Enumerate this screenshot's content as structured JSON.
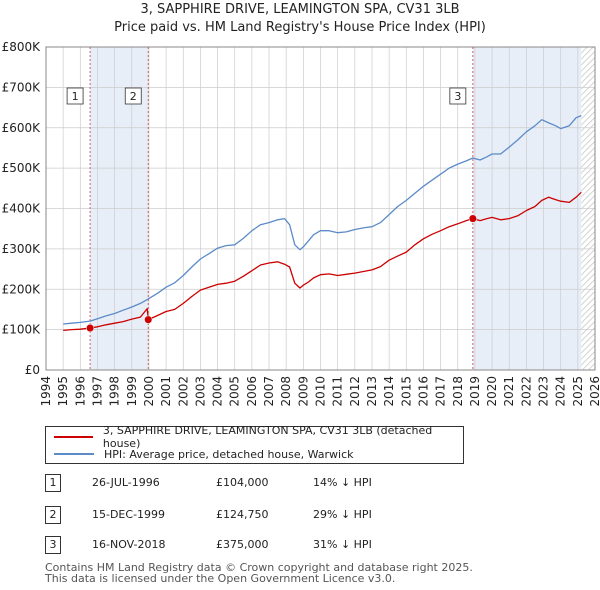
{
  "title": "3, SAPPHIRE DRIVE, LEAMINGTON SPA, CV31 3LB",
  "subtitle": "Price paid vs. HM Land Registry's House Price Index (HPI)",
  "colors": {
    "property": "#cc0000",
    "hpi": "#5b8bc9",
    "shade": "#e8eef8",
    "grid": "#cccccc",
    "marker_line": "#d06060"
  },
  "legend": {
    "property_label": "3, SAPPHIRE DRIVE, LEAMINGTON SPA, CV31 3LB (detached house)",
    "hpi_label": "HPI: Average price, detached house, Warwick"
  },
  "transactions": [
    {
      "num": "1",
      "date": "26-JUL-1996",
      "price": "£104,000",
      "hpi_diff": "14% ↓ HPI"
    },
    {
      "num": "2",
      "date": "15-DEC-1999",
      "price": "£124,750",
      "hpi_diff": "29% ↓ HPI"
    },
    {
      "num": "3",
      "date": "16-NOV-2018",
      "price": "£375,000",
      "hpi_diff": "31% ↓ HPI"
    }
  ],
  "footer": {
    "line1": "Contains HM Land Registry data © Crown copyright and database right 2025.",
    "line2": "This data is licensed under the Open Government Licence v3.0."
  },
  "chart_data": {
    "type": "line",
    "title": "3, SAPPHIRE DRIVE, LEAMINGTON SPA, CV31 3LB",
    "subtitle": "Price paid vs. HM Land Registry's House Price Index (HPI)",
    "xlabel": "",
    "ylabel": "",
    "xlim": [
      1994,
      2026
    ],
    "ylim": [
      0,
      800000
    ],
    "x_ticks": [
      1994,
      1995,
      1996,
      1997,
      1998,
      1999,
      2000,
      2001,
      2002,
      2003,
      2004,
      2005,
      2006,
      2007,
      2008,
      2009,
      2010,
      2011,
      2012,
      2013,
      2014,
      2015,
      2016,
      2017,
      2018,
      2019,
      2020,
      2021,
      2022,
      2023,
      2024,
      2025,
      2026
    ],
    "y_ticks": [
      0,
      100000,
      200000,
      300000,
      400000,
      500000,
      600000,
      700000,
      800000
    ],
    "y_tick_labels": [
      "£0",
      "£100K",
      "£200K",
      "£300K",
      "£400K",
      "£500K",
      "£600K",
      "£700K",
      "£800K"
    ],
    "grid": true,
    "shaded_ranges": [
      [
        1996.57,
        1999.96
      ],
      [
        2018.88,
        2025.2
      ]
    ],
    "data_end_year": 2025.2,
    "sales": [
      {
        "label": "1",
        "x": 1996.57,
        "y": 104000
      },
      {
        "label": "2",
        "x": 1999.96,
        "y": 124750
      },
      {
        "label": "3",
        "x": 2018.88,
        "y": 375000
      }
    ],
    "series": [
      {
        "name": "3, SAPPHIRE DRIVE, LEAMINGTON SPA, CV31 3LB (detached house)",
        "color": "#cc0000",
        "x": [
          1995.0,
          1995.5,
          1996.0,
          1996.57,
          1997.0,
          1997.5,
          1998.0,
          1998.5,
          1999.0,
          1999.5,
          1999.9,
          1999.96,
          2000.5,
          2001.0,
          2001.5,
          2002.0,
          2002.5,
          2003.0,
          2003.5,
          2004.0,
          2004.5,
          2005.0,
          2005.5,
          2006.0,
          2006.5,
          2007.0,
          2007.5,
          2007.9,
          2008.2,
          2008.5,
          2008.8,
          2009.0,
          2009.3,
          2009.6,
          2010.0,
          2010.5,
          2011.0,
          2011.5,
          2012.0,
          2012.5,
          2013.0,
          2013.5,
          2014.0,
          2014.5,
          2015.0,
          2015.5,
          2016.0,
          2016.5,
          2017.0,
          2017.5,
          2018.0,
          2018.5,
          2018.88,
          2019.3,
          2019.7,
          2020.0,
          2020.5,
          2021.0,
          2021.5,
          2022.0,
          2022.5,
          2022.9,
          2023.3,
          2023.7,
          2024.0,
          2024.5,
          2024.9,
          2025.2
        ],
        "y": [
          98000,
          100000,
          101000,
          104000,
          107000,
          112000,
          116000,
          120000,
          126000,
          131000,
          152000,
          124750,
          135000,
          145000,
          150000,
          165000,
          182000,
          198000,
          205000,
          212000,
          215000,
          220000,
          232000,
          246000,
          260000,
          265000,
          268000,
          262000,
          255000,
          215000,
          203000,
          210000,
          218000,
          228000,
          236000,
          238000,
          234000,
          237000,
          240000,
          244000,
          248000,
          256000,
          272000,
          282000,
          292000,
          310000,
          325000,
          336000,
          345000,
          355000,
          362000,
          370000,
          375000,
          370000,
          375000,
          378000,
          372000,
          375000,
          382000,
          395000,
          405000,
          420000,
          428000,
          422000,
          418000,
          415000,
          428000,
          440000
        ]
      },
      {
        "name": "HPI: Average price, detached house, Warwick",
        "color": "#5b8bc9",
        "x": [
          1995.0,
          1995.5,
          1996.0,
          1996.57,
          1997.0,
          1997.5,
          1998.0,
          1998.5,
          1999.0,
          1999.5,
          1999.96,
          2000.5,
          2001.0,
          2001.5,
          2002.0,
          2002.5,
          2003.0,
          2003.5,
          2004.0,
          2004.5,
          2005.0,
          2005.5,
          2006.0,
          2006.5,
          2007.0,
          2007.5,
          2007.9,
          2008.2,
          2008.5,
          2008.8,
          2009.0,
          2009.3,
          2009.6,
          2010.0,
          2010.5,
          2011.0,
          2011.5,
          2012.0,
          2012.5,
          2013.0,
          2013.5,
          2014.0,
          2014.5,
          2015.0,
          2015.5,
          2016.0,
          2016.5,
          2017.0,
          2017.5,
          2018.0,
          2018.5,
          2018.88,
          2019.3,
          2019.7,
          2020.0,
          2020.5,
          2021.0,
          2021.5,
          2022.0,
          2022.5,
          2022.9,
          2023.3,
          2023.7,
          2024.0,
          2024.5,
          2024.9,
          2025.2
        ],
        "y": [
          114000,
          116000,
          118000,
          121000,
          127000,
          134000,
          140000,
          148000,
          156000,
          165000,
          176000,
          190000,
          205000,
          216000,
          234000,
          255000,
          275000,
          288000,
          302000,
          308000,
          310000,
          326000,
          345000,
          360000,
          365000,
          372000,
          375000,
          360000,
          310000,
          298000,
          305000,
          320000,
          335000,
          345000,
          345000,
          340000,
          342000,
          348000,
          352000,
          355000,
          365000,
          385000,
          405000,
          420000,
          438000,
          455000,
          470000,
          485000,
          500000,
          510000,
          518000,
          525000,
          520000,
          528000,
          535000,
          535000,
          552000,
          570000,
          590000,
          605000,
          620000,
          612000,
          605000,
          598000,
          605000,
          625000,
          630000
        ]
      }
    ]
  }
}
